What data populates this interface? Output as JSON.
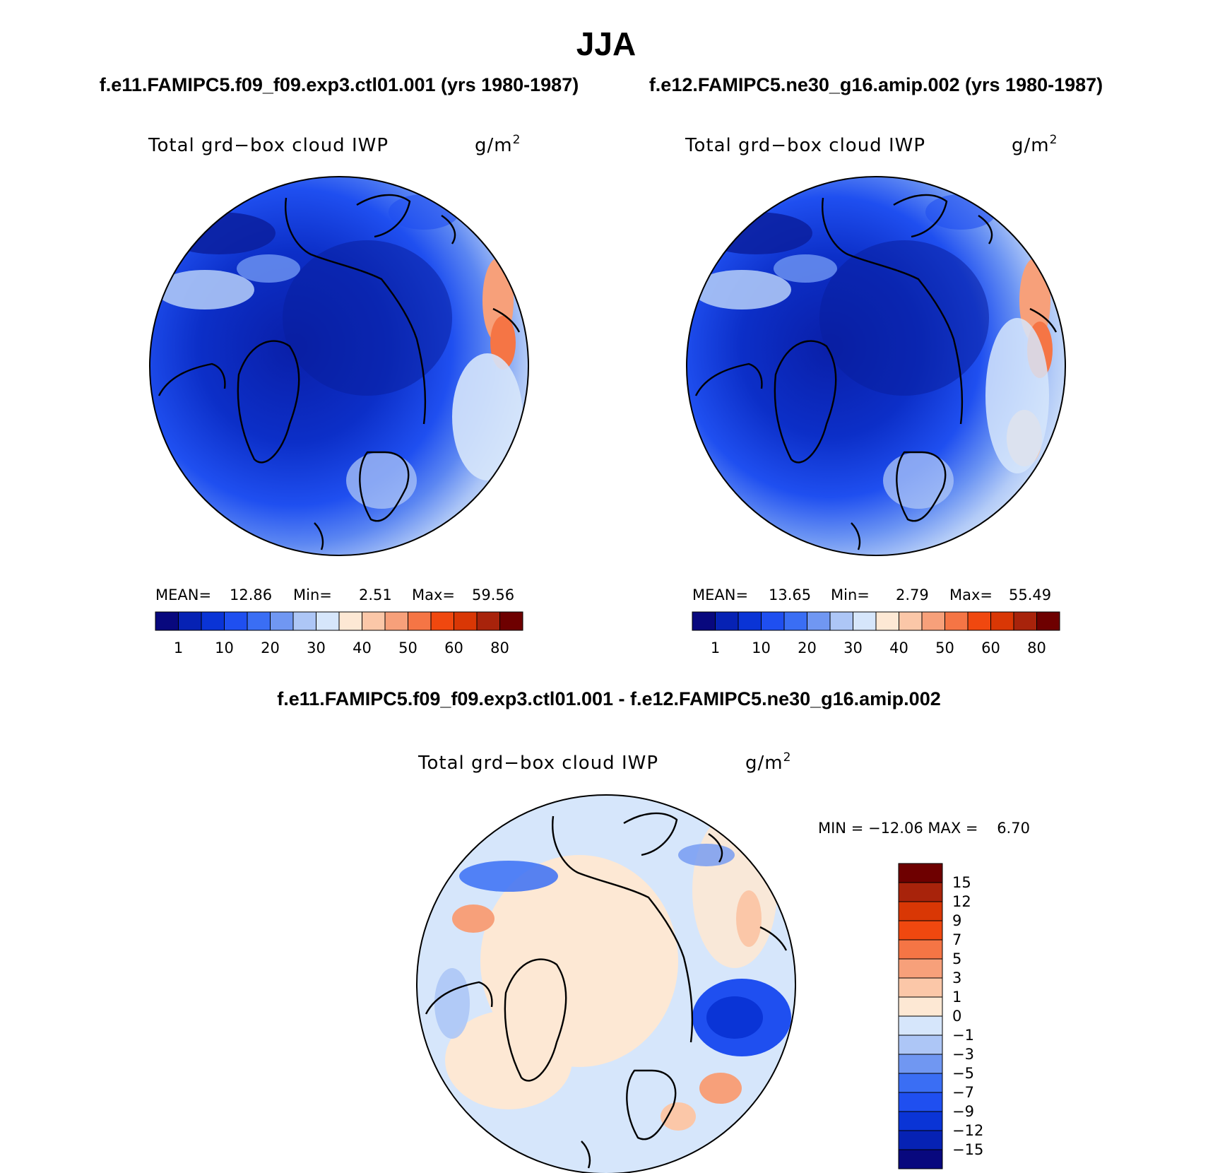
{
  "title": "JJA",
  "colors": {
    "abs_scale": [
      "#08087e",
      "#0622b4",
      "#0a34d6",
      "#1f4ff0",
      "#3a6ef4",
      "#7097f2",
      "#adc6f6",
      "#d6e6fb",
      "#fde8d4",
      "#fbc7a8",
      "#f7a07a",
      "#f57545",
      "#f0480f",
      "#d93705",
      "#a8230b",
      "#6e0000"
    ],
    "diff_scale": [
      "#08087e",
      "#0622b4",
      "#0a34d6",
      "#1f4ff0",
      "#3a6ef4",
      "#7097f2",
      "#adc6f6",
      "#d6e6fb",
      "#fde8d4",
      "#fbc7a8",
      "#f7a07a",
      "#f57545",
      "#f0480f",
      "#d93705",
      "#a8230b",
      "#6e0000"
    ],
    "coast": "#000000",
    "land": "#000000"
  },
  "chart_data": [
    {
      "type": "heatmap",
      "projection": "north polar stereographic",
      "case_title": "f.e11.FAMIPC5.f09_f09.exp3.ctl01.001 (yrs 1980-1987)",
      "var_name": "Total grd−box cloud IWP",
      "units_base": "g/m",
      "units_exp": "2",
      "stats": {
        "mean_label": "MEAN=",
        "mean": "12.86",
        "min_label": "Min=",
        "min": "2.51",
        "max_label": "Max=",
        "max": "59.56"
      },
      "colorbar_labels": [
        "1",
        "10",
        "20",
        "30",
        "40",
        "50",
        "60",
        "80"
      ],
      "colorbar_levels": [
        1,
        5,
        10,
        15,
        20,
        25,
        30,
        35,
        40,
        45,
        50,
        55,
        60,
        70,
        80
      ]
    },
    {
      "type": "heatmap",
      "projection": "north polar stereographic",
      "case_title": "f.e12.FAMIPC5.ne30_g16.amip.002 (yrs 1980-1987)",
      "var_name": "Total grd−box cloud IWP",
      "units_base": "g/m",
      "units_exp": "2",
      "stats": {
        "mean_label": "MEAN=",
        "mean": "13.65",
        "min_label": "Min=",
        "min": "2.79",
        "max_label": "Max=",
        "max": "55.49"
      },
      "colorbar_labels": [
        "1",
        "10",
        "20",
        "30",
        "40",
        "50",
        "60",
        "80"
      ],
      "colorbar_levels": [
        1,
        5,
        10,
        15,
        20,
        25,
        30,
        35,
        40,
        45,
        50,
        55,
        60,
        70,
        80
      ]
    },
    {
      "type": "heatmap",
      "projection": "north polar stereographic",
      "case_title": "f.e11.FAMIPC5.f09_f09.exp3.ctl01.001 - f.e12.FAMIPC5.ne30_g16.amip.002",
      "var_name": "Total grd−box cloud IWP",
      "units_base": "g/m",
      "units_exp": "2",
      "stats_text": "MIN = −12.06 MAX =    6.70",
      "colorbar_labels": [
        "15",
        "12",
        "9",
        "7",
        "5",
        "3",
        "1",
        "0",
        "−1",
        "−3",
        "−5",
        "−7",
        "−9",
        "−12",
        "−15"
      ],
      "colorbar_levels": [
        15,
        12,
        9,
        7,
        5,
        3,
        1,
        0,
        -1,
        -3,
        -5,
        -7,
        -9,
        -12,
        -15
      ]
    }
  ]
}
